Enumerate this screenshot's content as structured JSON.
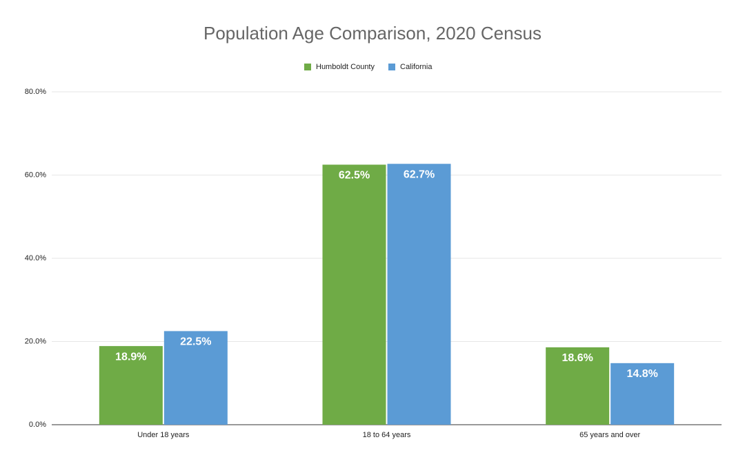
{
  "chart_data": {
    "type": "bar",
    "title": "Population Age Comparison, 2020 Census",
    "categories": [
      "Under 18 years",
      "18 to 64 years",
      "65 years and over"
    ],
    "series": [
      {
        "name": "Humboldt County",
        "color": "#6fab46",
        "values": [
          18.9,
          62.5,
          18.6
        ],
        "value_labels": [
          "18.9%",
          "62.5%",
          "18.6%"
        ]
      },
      {
        "name": "California",
        "color": "#5b9bd5",
        "values": [
          22.5,
          62.7,
          14.8
        ],
        "value_labels": [
          "22.5%",
          "62.7%",
          "14.8%"
        ]
      }
    ],
    "ylim": [
      0,
      80
    ],
    "yticks": [
      {
        "value": 0,
        "label": "0.0%"
      },
      {
        "value": 20,
        "label": "20.0%"
      },
      {
        "value": 40,
        "label": "40.0%"
      },
      {
        "value": 60,
        "label": "60.0%"
      },
      {
        "value": 80,
        "label": "80.0%"
      }
    ],
    "grid": true,
    "legend": "top"
  }
}
